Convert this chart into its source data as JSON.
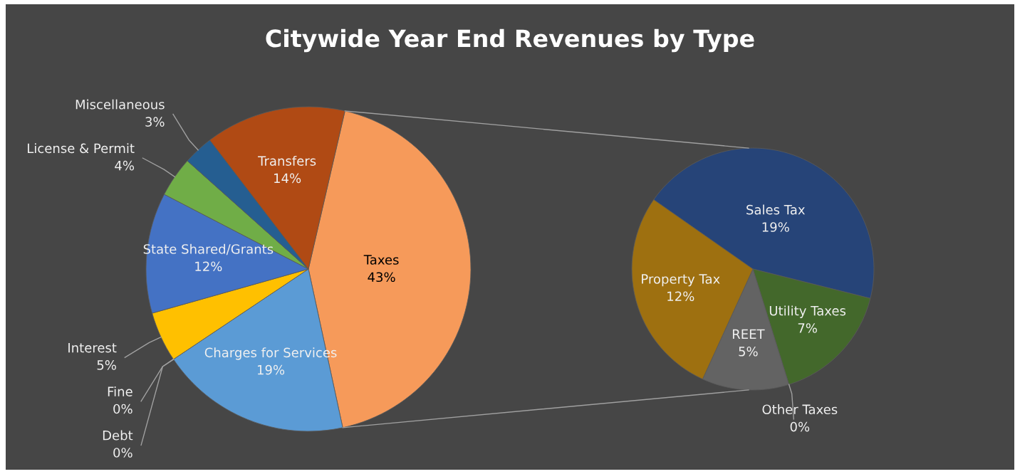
{
  "chart_data": [
    {
      "type": "pie",
      "title": "Citywide Year End Revenues by Type",
      "categories": [
        "Taxes",
        "Charges for Services",
        "Debt",
        "Fine",
        "Interest",
        "State Shared/Grants",
        "License & Permit",
        "Miscellaneous",
        "Transfers"
      ],
      "values": [
        43,
        19,
        0,
        0,
        5,
        12,
        4,
        3,
        14
      ],
      "value_labels": [
        "43%",
        "19%",
        "0%",
        "0%",
        "5%",
        "12%",
        "4%",
        "3%",
        "14%"
      ],
      "colors": [
        "#f69a5a",
        "#5b9bd5",
        "#a5a5a5",
        "#ffc000",
        "#ffc000",
        "#4472c4",
        "#70ad47",
        "#255e91",
        "#b04a14"
      ]
    },
    {
      "type": "pie",
      "categories": [
        "Sales Tax",
        "Utility Taxes",
        "Other Taxes",
        "REET",
        "Property Tax"
      ],
      "values": [
        19,
        7,
        0,
        5,
        12
      ],
      "value_labels": [
        "19%",
        "7%",
        "0%",
        "5%",
        "12%"
      ],
      "colors": [
        "#264478",
        "#43682b",
        "#5b9bd5",
        "#636363",
        "#9e7010"
      ]
    }
  ]
}
